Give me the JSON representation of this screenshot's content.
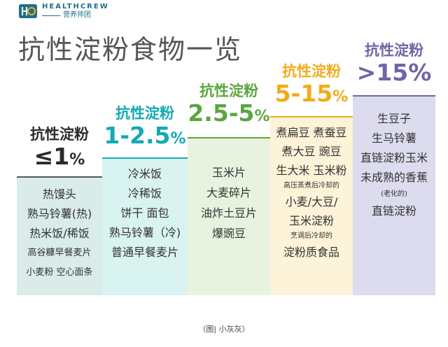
{
  "logo": {
    "brand": "HEALTHCREW",
    "sub": "营养师团"
  },
  "title": "抗性淀粉食物一览",
  "columns": [
    {
      "heading": "抗性淀粉",
      "range_main": "≤1",
      "range_unit": "%",
      "color": "#2b2b2b",
      "bg": "#d9ecea",
      "items": [
        "热馒头",
        "熟马铃薯(热)",
        "热米饭/稀饭",
        "高谷糠早餐麦片",
        "小麦粉 空心面条"
      ]
    },
    {
      "heading": "抗性淀粉",
      "range_main": "1-2.5",
      "range_unit": "%",
      "color": "#14a9b5",
      "bg": "#d8f3f0",
      "items": [
        "冷米饭",
        "冷稀饭",
        "饼干 面包",
        "熟马铃薯（冷)",
        "普通早餐麦片"
      ]
    },
    {
      "heading": "抗性淀粉",
      "range_main": "2.5-5",
      "range_unit": "%",
      "color": "#5aa63f",
      "bg": "#e7f3df",
      "items": [
        "玉米片",
        "大麦碎片",
        "油炸土豆片",
        "爆豌豆"
      ]
    },
    {
      "heading": "抗性淀粉",
      "range_main": "5-15",
      "range_unit": "%",
      "color": "#f1ac1c",
      "bg": "#fdf3d8",
      "items": [
        "煮扁豆 煮蚕豆",
        "煮大豆 豌豆",
        "生大米 玉米粉",
        "高压蒸煮后冷却的",
        "小麦/大豆/",
        "玉米淀粉",
        "烹调后冷却的",
        "淀粉质食品"
      ]
    },
    {
      "heading": "抗性淀粉",
      "range_main": ">15",
      "range_unit": "%",
      "color": "#6e66a8",
      "bg": "#dcdcee",
      "items": [
        "生豆子",
        "生马铃薯",
        "直链淀粉玉米",
        "未成熟的香蕉",
        "(老化的)",
        "直链淀粉"
      ]
    }
  ],
  "caption": "（图| 小灰灰）"
}
